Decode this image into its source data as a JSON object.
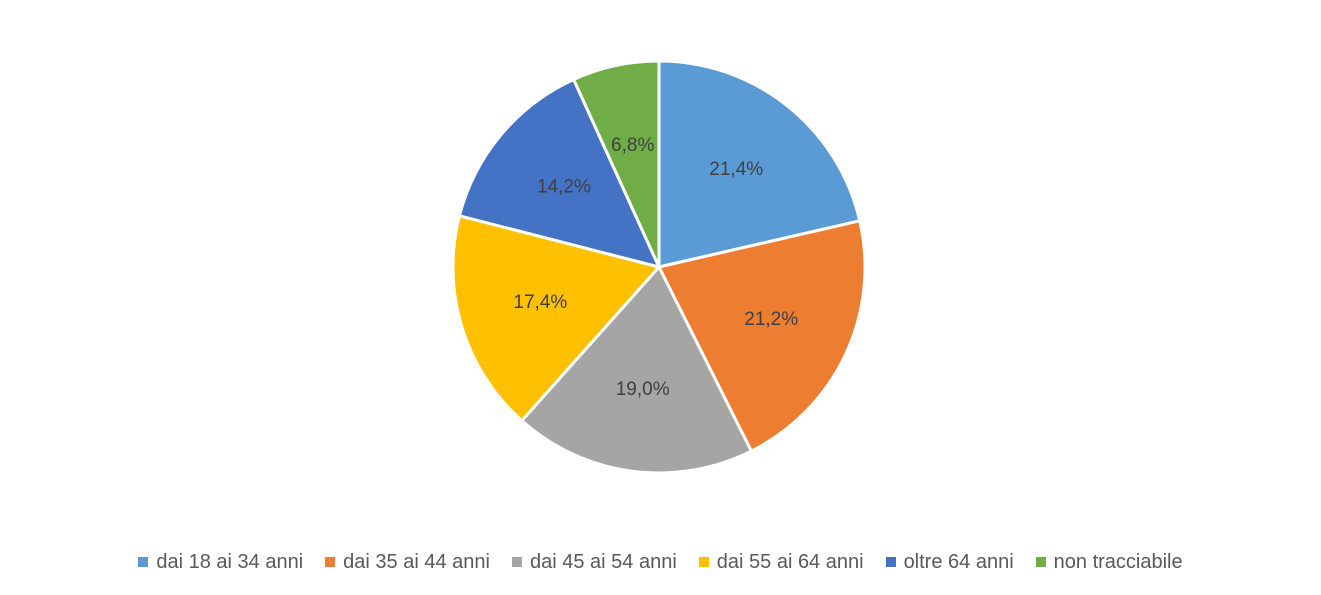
{
  "chart_data": {
    "type": "pie",
    "categories": [
      "dai 18 ai 34 anni",
      "dai 35 ai 44 anni",
      "dai 45 ai 54 anni",
      "dai 55 ai 64 anni",
      "oltre 64 anni",
      "non tracciabile"
    ],
    "values": [
      21.4,
      21.2,
      19.0,
      17.4,
      14.2,
      6.8
    ],
    "data_labels": [
      "21,4%",
      "21,2%",
      "19,0%",
      "17,4%",
      "14,2%",
      "6,8%"
    ],
    "colors": [
      "#5B9BD5",
      "#ED7D31",
      "#A5A5A5",
      "#FFC000",
      "#4472C4",
      "#70AD47"
    ],
    "legend_position": "bottom",
    "start_angle_deg": 0,
    "direction": "clockwise"
  }
}
